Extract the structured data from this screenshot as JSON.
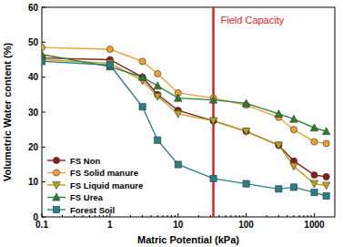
{
  "chart_data": {
    "type": "line",
    "x_label": "Matric Potential (kPa)",
    "y_label": "Volumetric Water content (%)",
    "x": [
      0.1,
      1,
      3,
      5,
      10,
      33,
      100,
      300,
      500,
      1000,
      1500
    ],
    "series": [
      {
        "name": "FS Non",
        "color": "#8b1c1c",
        "marker": "circle",
        "values": [
          45.5,
          45,
          40,
          35,
          30.5,
          27.5,
          24.5,
          20.5,
          16,
          12,
          11.5
        ]
      },
      {
        "name": "FS Solid manure",
        "color": "#f0a030",
        "marker": "circle",
        "values": [
          48.5,
          48,
          44.5,
          41,
          35.5,
          34,
          32,
          28.5,
          25,
          21.5,
          21
        ]
      },
      {
        "name": "FS Liquid manure",
        "color": "#b8a21e",
        "marker": "triangle-down",
        "values": [
          45,
          44,
          39,
          34.5,
          29.5,
          27.5,
          24.5,
          20.5,
          14.5,
          9.5,
          9
        ]
      },
      {
        "name": "FS Urea",
        "color": "#2e7d32",
        "marker": "triangle-up",
        "values": [
          46.5,
          43,
          40,
          37.5,
          34,
          33.5,
          32.5,
          29.5,
          28,
          25.5,
          24.5
        ]
      },
      {
        "name": "Forest Soil",
        "color": "#2a7f8a",
        "marker": "square",
        "values": [
          44.5,
          43.5,
          31.5,
          22,
          15,
          11,
          9.5,
          8,
          8.5,
          7,
          6
        ]
      }
    ],
    "annotations": [
      {
        "text": "Field Capacity",
        "x": 33
      }
    ],
    "log": "x",
    "xlim": [
      0.1,
      2000
    ],
    "xticks": [
      0.1,
      1,
      10,
      100,
      1000
    ],
    "ylim": [
      0,
      60
    ],
    "yticks": [
      0,
      10,
      20,
      30,
      40,
      50,
      60
    ],
    "grid": false,
    "legend": "lower left",
    "line_style": "solid"
  }
}
